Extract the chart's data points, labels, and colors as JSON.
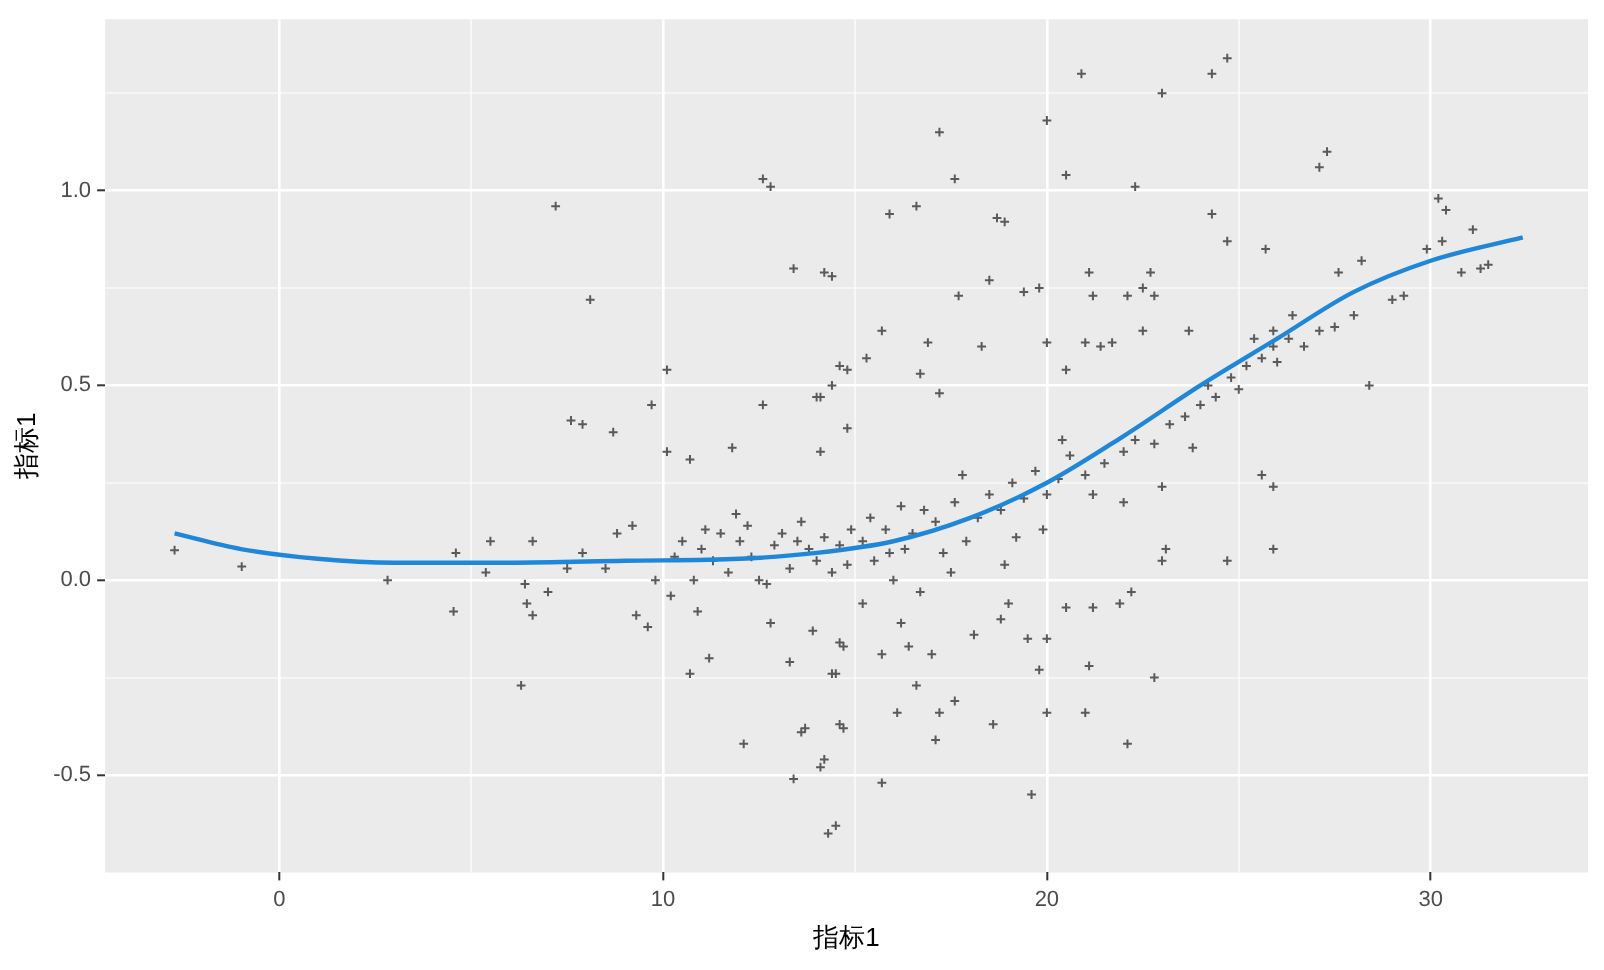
{
  "chart_data": {
    "type": "scatter",
    "xlabel": "指标1",
    "ylabel": "指标1",
    "xlim": [
      -4.54,
      34.1
    ],
    "ylim": [
      -0.75,
      1.44
    ],
    "xticks": [
      0,
      {
        "value": 5,
        "label": null
      },
      10,
      {
        "value": 15,
        "label": null
      },
      20,
      {
        "value": 25,
        "label": null
      },
      30
    ],
    "yticks": [
      {
        "value": -0.5,
        "label": "-0.5"
      },
      {
        "value": -0.25,
        "label": null
      },
      {
        "value": 0,
        "label": "0.0"
      },
      {
        "value": 0.25,
        "label": null
      },
      {
        "value": 0.5,
        "label": "0.5"
      },
      {
        "value": 0.75,
        "label": null
      },
      {
        "value": 1,
        "label": "1.0"
      },
      {
        "value": 1.25,
        "label": null
      }
    ],
    "grid": true,
    "legend": false,
    "series": [
      {
        "color": "#5a5a5a",
        "marker": "cross",
        "x": [
          -2.73,
          -0.98,
          2.82,
          4.54,
          4.6,
          5.38,
          5.5,
          6.3,
          6.4,
          6.45,
          6.6,
          6.6,
          7.0,
          7.2,
          7.5,
          7.6,
          7.9,
          7.9,
          8.1,
          8.5,
          8.7,
          8.8,
          9.2,
          9.3,
          9.6,
          9.7,
          9.8,
          10.1,
          10.1,
          10.2,
          10.7,
          10.7,
          10.9,
          11.2,
          11.8,
          11.9,
          12.1,
          12.6,
          12.6,
          12.8,
          12.7,
          12.8,
          13.3,
          13.4,
          13.4,
          13.7,
          13.9,
          14.1,
          14.1,
          14.2,
          14.4,
          14.4,
          14.5,
          14.5,
          14.7,
          14.7,
          14.8,
          11,
          11.3,
          11.5,
          11.7,
          12,
          12.3,
          12.5,
          12.9,
          13.1,
          13.3,
          13.6,
          13.8,
          14,
          14.2,
          14.4,
          14.6,
          10.5,
          10.3,
          10.8,
          11.1,
          12.2,
          13.5,
          14.8,
          14.9,
          14.2,
          14.0,
          14.6,
          14.8,
          15.3,
          15.7,
          15.9,
          16.6,
          17.2,
          17.6,
          16.7,
          16.9,
          17.2,
          17.7,
          18.3,
          18.5,
          18.7,
          18.9,
          19.4,
          19.8,
          20.0,
          20.0,
          20.5,
          20.5,
          20.9,
          21.0,
          21.1,
          21.2,
          21.4,
          21.7,
          22.1,
          22.3,
          22.5,
          22.5,
          22.7,
          22.8,
          23.0,
          23.7,
          24.3,
          24.7,
          24.3,
          24.7,
          25.7,
          25.9,
          26.4,
          27.1,
          27.3,
          27.6,
          28.2,
          28.4,
          29.0,
          29.3,
          29.9,
          30.2,
          30.4,
          30.8,
          31.1,
          31.3,
          31.5,
          30.3,
          21,
          21.5,
          22,
          22.3,
          22.8,
          23.2,
          23.6,
          24,
          24.4,
          24.8,
          25.2,
          25.6,
          25.9,
          26.3,
          26.7,
          27.1,
          27.5,
          28,
          23.8,
          25,
          26,
          24.2,
          25.4,
          22,
          21.2,
          13.6,
          14.1,
          14.3,
          14.4,
          14.6,
          14.6,
          15.2,
          15.7,
          15.7,
          16.1,
          16.2,
          16.4,
          16.6,
          17.0,
          17.1,
          17.2,
          17.6,
          18.1,
          18.6,
          18.8,
          19.0,
          19.5,
          19.6,
          19.8,
          20.0,
          20.0,
          20.5,
          21.1,
          21.0,
          21.2,
          21.9,
          22.1,
          22.2,
          22.8,
          23.0,
          24.7,
          25.6,
          25.9,
          25.9,
          23.1,
          23.0,
          15.2,
          15.5,
          15.8,
          16,
          16.3,
          16.5,
          16.8,
          17.1,
          17.3,
          17.6,
          17.9,
          18.2,
          18.5,
          18.8,
          19.1,
          19.4,
          19.7,
          20,
          20.3,
          20.6,
          19.9,
          18.9,
          17.5,
          16.2,
          15.4,
          16.7,
          20.4,
          19.2,
          15.9,
          17.8
        ],
        "values": [
          0.077,
          0.035,
          0.0,
          -0.08,
          0.07,
          0.02,
          0.1,
          -0.27,
          -0.01,
          -0.06,
          -0.09,
          0.1,
          -0.03,
          0.96,
          0.03,
          0.41,
          0.4,
          0.07,
          0.72,
          0.03,
          0.38,
          0.12,
          0.14,
          -0.09,
          -0.12,
          0.45,
          0.0,
          0.54,
          0.33,
          -0.04,
          0.31,
          -0.24,
          -0.08,
          -0.2,
          0.34,
          0.17,
          -0.42,
          0.45,
          1.03,
          1.01,
          -0.01,
          -0.11,
          -0.21,
          0.8,
          -0.51,
          -0.38,
          -0.13,
          0.47,
          0.33,
          -0.46,
          0.78,
          0.5,
          -0.63,
          -0.24,
          -0.17,
          -0.38,
          0.54,
          0.08,
          0.05,
          0.12,
          0.02,
          0.1,
          0.06,
          0.0,
          0.09,
          0.12,
          0.03,
          0.15,
          0.08,
          0.05,
          0.11,
          0.02,
          0.09,
          0.1,
          0.06,
          0.0,
          0.13,
          0.14,
          0.1,
          0.04,
          0.13,
          0.79,
          0.47,
          0.55,
          0.39,
          0.57,
          0.64,
          0.94,
          0.96,
          1.15,
          1.03,
          0.53,
          0.61,
          0.48,
          0.73,
          0.6,
          0.77,
          0.93,
          0.92,
          0.74,
          0.75,
          1.18,
          0.61,
          1.04,
          0.54,
          1.3,
          0.61,
          0.79,
          0.73,
          0.6,
          0.61,
          0.73,
          1.01,
          0.64,
          0.75,
          0.79,
          0.73,
          1.25,
          0.64,
          1.3,
          1.34,
          0.94,
          0.87,
          0.85,
          0.64,
          0.68,
          1.06,
          1.1,
          0.79,
          0.82,
          0.5,
          0.72,
          0.73,
          0.85,
          0.98,
          0.95,
          0.79,
          0.9,
          0.8,
          0.81,
          0.87,
          0.27,
          0.3,
          0.33,
          0.36,
          0.35,
          0.4,
          0.42,
          0.45,
          0.47,
          0.52,
          0.55,
          0.57,
          0.6,
          0.62,
          0.6,
          0.64,
          0.65,
          0.68,
          0.34,
          0.49,
          0.56,
          0.5,
          0.62,
          0.2,
          0.22,
          -0.39,
          -0.48,
          -0.65,
          -0.24,
          -0.16,
          -0.37,
          -0.06,
          -0.19,
          -0.52,
          -0.34,
          -0.11,
          -0.17,
          -0.27,
          -0.19,
          -0.41,
          -0.34,
          -0.31,
          -0.14,
          -0.37,
          -0.1,
          -0.06,
          -0.15,
          -0.55,
          -0.23,
          -0.34,
          -0.15,
          -0.07,
          -0.22,
          -0.34,
          -0.07,
          -0.06,
          -0.42,
          -0.03,
          -0.25,
          0.05,
          0.05,
          0.27,
          0.24,
          0.08,
          0.08,
          0.24,
          0.1,
          0.05,
          0.13,
          0.0,
          0.08,
          0.12,
          0.18,
          0.15,
          0.07,
          0.2,
          0.1,
          0.16,
          0.22,
          0.18,
          0.25,
          0.21,
          0.28,
          0.22,
          0.26,
          0.32,
          0.13,
          0.04,
          0.02,
          0.19,
          0.16,
          -0.03,
          0.36,
          0.11,
          0.07,
          0.27
        ]
      },
      {
        "type": "line",
        "color": "#1f86d8",
        "marker": "none",
        "x": [
          -2.73,
          -1,
          1,
          3,
          6,
          9,
          12,
          14,
          16,
          18,
          20,
          22,
          24,
          26,
          28,
          30,
          32.4
        ],
        "values": [
          0.12,
          0.08,
          0.055,
          0.045,
          0.045,
          0.05,
          0.055,
          0.07,
          0.1,
          0.16,
          0.25,
          0.37,
          0.5,
          0.62,
          0.74,
          0.82,
          0.88
        ]
      }
    ]
  }
}
